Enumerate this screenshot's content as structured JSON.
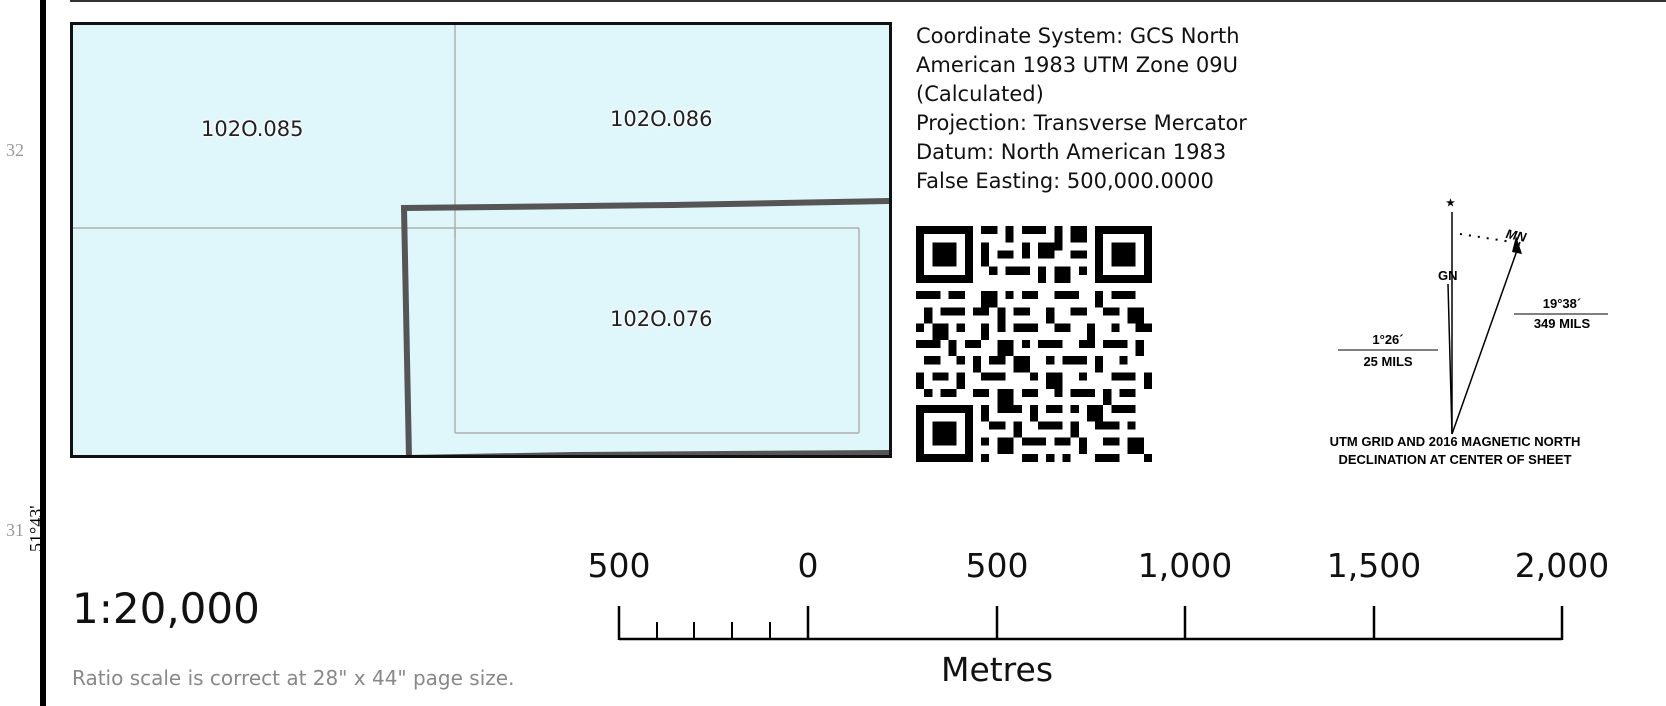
{
  "grid_numbers": [
    "32",
    "31"
  ],
  "latitude_label": "51°43'",
  "index_map": {
    "sheets": [
      "102O.085",
      "102O.086",
      "102O.076"
    ]
  },
  "coordinate_info": {
    "text": "Coordinate System: GCS North\nAmerican 1983 UTM Zone 09U\n(Calculated)\nProjection: Transverse Mercator\nDatum: North American 1983\nFalse Easting: 500,000.0000"
  },
  "declination": {
    "star": "★",
    "gn_label": "GN",
    "mn_label": "MN",
    "gn_angle_deg": "1°26´",
    "gn_angle_mils": "25 MILS",
    "mn_angle_deg": "19°38´",
    "mn_angle_mils": "349 MILS",
    "caption_line1": "UTM GRID AND 2016 MAGNETIC NORTH",
    "caption_line2": "DECLINATION AT CENTER OF SHEET"
  },
  "scale": {
    "ratio": "1:20,000",
    "note": "Ratio scale is correct at 28\" x 44\" page size.",
    "tick_labels": [
      "500",
      "0",
      "500",
      "1,000",
      "1,500",
      "2,000"
    ],
    "units": "Metres"
  }
}
